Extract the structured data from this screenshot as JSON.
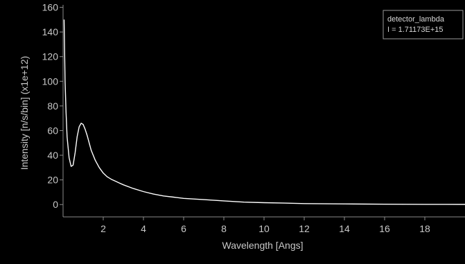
{
  "chart_data": {
    "type": "line",
    "title": "",
    "xlabel": "Wavelength [Angs]",
    "ylabel": "Intensity [n/s/bin] (x1e+12)",
    "xlim": [
      0,
      20
    ],
    "ylim": [
      -10,
      162
    ],
    "xticks": [
      2,
      4,
      6,
      8,
      10,
      12,
      14,
      16,
      18
    ],
    "yticks": [
      0,
      20,
      40,
      60,
      80,
      100,
      120,
      140,
      160
    ],
    "grid": false,
    "legend_position": "top-right",
    "legend": {
      "name": "detector_lambda",
      "info": "I = 1.71173E+15"
    },
    "colors": {
      "background": "#000000",
      "axes": "#8a8a8a",
      "line": "#ffffff",
      "text": "#c8c8c8"
    },
    "series": [
      {
        "x": [
          0.05,
          0.1,
          0.15,
          0.2,
          0.3,
          0.4,
          0.5,
          0.6,
          0.7,
          0.8,
          0.9,
          1.0,
          1.1,
          1.2,
          1.3,
          1.4,
          1.6,
          1.8,
          2.0,
          2.2,
          2.4,
          2.6,
          2.8,
          3.0,
          3.5,
          4.0,
          4.5,
          5.0,
          5.5,
          6.0,
          7.0,
          8.0,
          9.0,
          10.0,
          11.0,
          12.0,
          13.0,
          14.0,
          15.0,
          16.0,
          17.0,
          18.0,
          19.0,
          20.0
        ],
        "y": [
          150,
          100,
          75,
          55,
          38,
          31,
          32,
          42,
          55,
          63,
          66,
          65,
          61,
          56,
          50,
          44,
          36,
          30,
          25.5,
          22.5,
          20.5,
          19,
          17.5,
          16,
          13,
          10.5,
          8.5,
          7,
          6,
          5,
          4,
          3,
          2,
          1.5,
          1.2,
          0.8,
          0.6,
          0.5,
          0.4,
          0.3,
          0.25,
          0.2,
          0.15,
          0.1
        ]
      }
    ]
  }
}
